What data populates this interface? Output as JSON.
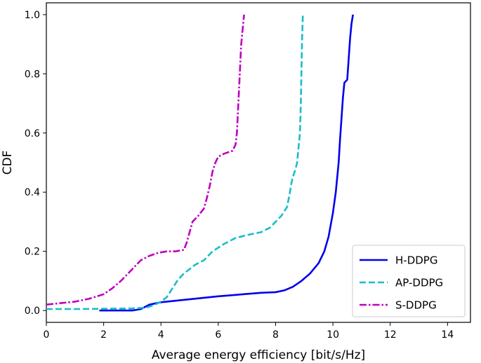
{
  "chart_data": {
    "type": "line",
    "title": "",
    "xlabel": "Average energy efficiency [bit/s/Hz]",
    "ylabel": "CDF",
    "xlim": [
      0,
      14.8
    ],
    "ylim": [
      -0.04,
      1.04
    ],
    "xticks": [
      0,
      2,
      4,
      6,
      8,
      10,
      12,
      14
    ],
    "yticks": [
      0.0,
      0.2,
      0.4,
      0.6,
      0.8,
      1.0
    ],
    "xtick_labels": [
      "0",
      "2",
      "4",
      "6",
      "8",
      "10",
      "12",
      "14"
    ],
    "ytick_labels": [
      "0.0",
      "0.2",
      "0.4",
      "0.6",
      "0.8",
      "1.0"
    ],
    "grid": false,
    "legend_position": "lower-right",
    "series": [
      {
        "name": "H-DDPG",
        "color": "#0000ee",
        "style": "solid",
        "x": [
          1.85,
          2.5,
          3.0,
          3.3,
          3.6,
          4.0,
          4.5,
          5.0,
          5.5,
          6.0,
          6.5,
          7.0,
          7.5,
          8.0,
          8.3,
          8.6,
          8.9,
          9.2,
          9.5,
          9.7,
          9.85,
          10.0,
          10.1,
          10.2,
          10.25,
          10.3,
          10.35,
          10.4,
          10.45,
          10.5,
          10.55,
          10.6,
          10.65,
          10.7
        ],
        "y": [
          0.0,
          0.0,
          0.0,
          0.005,
          0.02,
          0.028,
          0.033,
          0.038,
          0.043,
          0.048,
          0.052,
          0.056,
          0.06,
          0.062,
          0.068,
          0.08,
          0.1,
          0.125,
          0.16,
          0.2,
          0.25,
          0.33,
          0.4,
          0.5,
          0.58,
          0.65,
          0.72,
          0.77,
          0.775,
          0.78,
          0.85,
          0.92,
          0.97,
          1.0
        ]
      },
      {
        "name": "AP-DDPG",
        "color": "#17bec9",
        "style": "dashed",
        "x": [
          0.0,
          1.0,
          2.0,
          3.0,
          3.5,
          3.8,
          4.0,
          4.2,
          4.4,
          4.6,
          4.8,
          5.0,
          5.2,
          5.5,
          5.8,
          6.2,
          6.6,
          7.0,
          7.5,
          7.8,
          8.0,
          8.2,
          8.4,
          8.5,
          8.55,
          8.6,
          8.7,
          8.75,
          8.8,
          8.85,
          8.88,
          8.9,
          8.92,
          8.95
        ],
        "y": [
          0.005,
          0.005,
          0.006,
          0.007,
          0.01,
          0.02,
          0.03,
          0.045,
          0.075,
          0.105,
          0.125,
          0.14,
          0.155,
          0.17,
          0.2,
          0.225,
          0.245,
          0.255,
          0.265,
          0.28,
          0.3,
          0.32,
          0.35,
          0.4,
          0.43,
          0.45,
          0.48,
          0.5,
          0.55,
          0.6,
          0.7,
          0.8,
          0.9,
          1.0
        ]
      },
      {
        "name": "S-DDPG",
        "color": "#bf00bf",
        "style": "dashdot",
        "x": [
          0.0,
          0.5,
          1.0,
          1.5,
          2.0,
          2.3,
          2.6,
          2.9,
          3.1,
          3.3,
          3.6,
          3.9,
          4.2,
          4.5,
          4.8,
          4.9,
          5.0,
          5.1,
          5.3,
          5.5,
          5.6,
          5.7,
          5.8,
          5.9,
          6.0,
          6.2,
          6.5,
          6.6,
          6.65,
          6.7,
          6.75,
          6.8,
          6.85,
          6.9
        ],
        "y": [
          0.02,
          0.025,
          0.03,
          0.04,
          0.055,
          0.075,
          0.1,
          0.13,
          0.15,
          0.17,
          0.185,
          0.195,
          0.2,
          0.2,
          0.205,
          0.23,
          0.265,
          0.3,
          0.32,
          0.345,
          0.38,
          0.42,
          0.47,
          0.5,
          0.52,
          0.53,
          0.54,
          0.56,
          0.6,
          0.7,
          0.8,
          0.9,
          0.95,
          1.0
        ]
      }
    ]
  }
}
